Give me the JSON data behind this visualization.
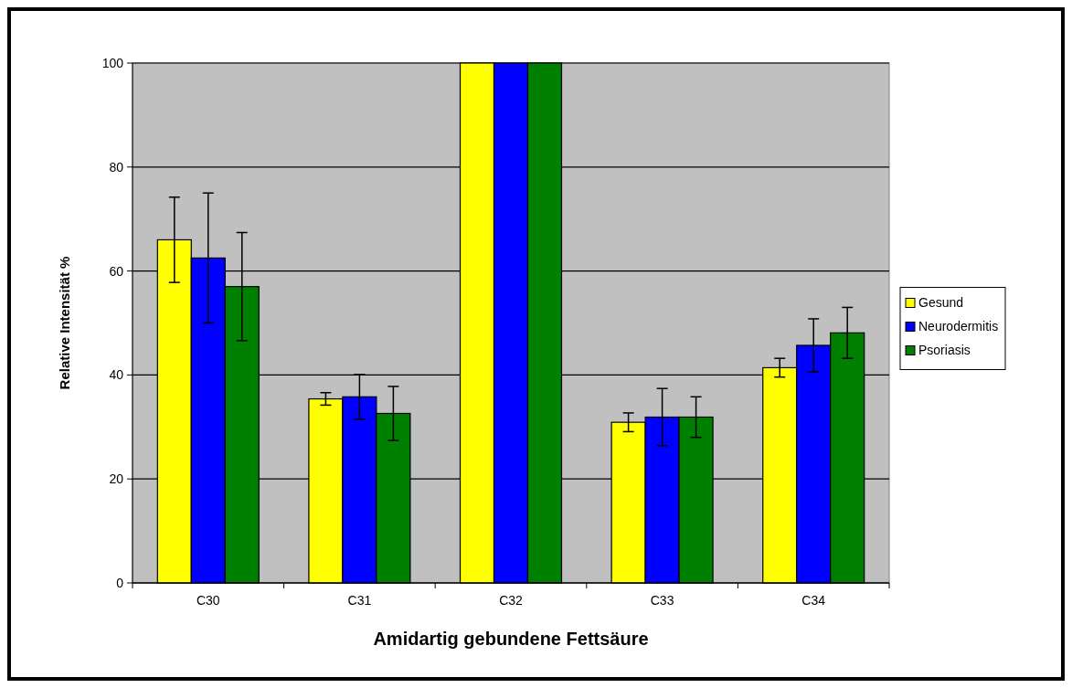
{
  "chart_data": {
    "type": "bar",
    "xlabel": "Amidartig gebundene Fettsäure",
    "ylabel": "Relative Intensität %",
    "categories": [
      "C30",
      "C31",
      "C32",
      "C33",
      "C34"
    ],
    "series": [
      {
        "name": "Gesund",
        "color": "#ffff00",
        "values": [
          66.0,
          35.4,
          100,
          30.9,
          41.4
        ],
        "errors": [
          8.2,
          1.2,
          null,
          1.8,
          1.8
        ]
      },
      {
        "name": "Neurodermitis",
        "color": "#0000ff",
        "values": [
          62.5,
          35.8,
          100,
          31.9,
          45.7
        ],
        "errors": [
          12.5,
          4.3,
          null,
          5.5,
          5.1
        ]
      },
      {
        "name": "Psoriasis",
        "color": "#008000",
        "values": [
          57.0,
          32.6,
          100,
          31.9,
          48.1
        ],
        "errors": [
          10.4,
          5.2,
          null,
          3.9,
          4.9
        ]
      }
    ],
    "ylim": [
      0,
      100
    ],
    "yticks": [
      0,
      20,
      40,
      60,
      80,
      100
    ],
    "grid": "y",
    "legend": "right"
  }
}
